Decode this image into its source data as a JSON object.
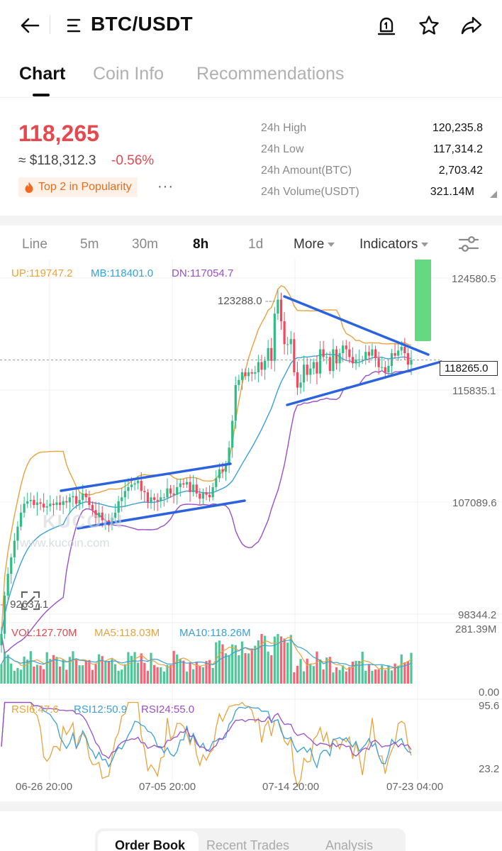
{
  "header": {
    "back_icon": "arrow-left-icon",
    "menu_icon": "list-menu-icon",
    "pair": "BTC/USDT",
    "alert_icon": "price-alert-icon",
    "favorite_icon": "star-icon",
    "share_icon": "share-icon"
  },
  "tabs": [
    {
      "label": "Chart",
      "active": true
    },
    {
      "label": "Coin Info",
      "active": false
    },
    {
      "label": "Recommendations",
      "active": false
    }
  ],
  "ticker": {
    "last_price": "118,265",
    "usd_value": "≈ $118,312.3",
    "change": "-0.56%",
    "badge": "Top 2 in Popularity",
    "badge_icon": "flame-icon",
    "more_label": "···"
  },
  "stats": [
    {
      "label": "24h High",
      "value": "120,235.8"
    },
    {
      "label": "24h Low",
      "value": "117,314.2"
    },
    {
      "label": "24h Amount(BTC)",
      "value": "2,703.42"
    },
    {
      "label": "24h Volume(USDT)",
      "value": "321.14M"
    }
  ],
  "timeframes": {
    "items": [
      "Line",
      "5m",
      "30m",
      "8h",
      "1d"
    ],
    "active": "8h",
    "more": "More",
    "indicators": "Indicators",
    "settings_icon": "sliders-icon"
  },
  "boll_legend": {
    "up": "UP:119747.2",
    "mb": "MB:118401.0",
    "dn": "DN:117054.7"
  },
  "vol_legend": {
    "vol": "VOL:127.70M",
    "ma5": "MA5:118.03M",
    "ma10": "MA10:118.26M"
  },
  "rsi_legend": {
    "rsi6": "RSI6:47.6",
    "rsi12": "RSI12:50.9",
    "rsi24": "RSI24:55.0"
  },
  "price_axis": [
    "124580.5",
    "115835.1",
    "107089.6",
    "98344.2"
  ],
  "current_price_tag": "118265.0",
  "max_marker": "123288.0",
  "min_marker": "92637.1",
  "vol_axis": [
    "281.39M",
    "0.00"
  ],
  "rsi_axis": [
    "95.6",
    "23.2"
  ],
  "dates": [
    "06-26 20:00",
    "07-05 20:00",
    "07-14 20:00",
    "07-23 04:00"
  ],
  "watermark": {
    "brand": "KUCOIN",
    "url": "www.kucoin.com"
  },
  "bottom_tabs": [
    {
      "label": "Order Book",
      "active": true
    },
    {
      "label": "Recent Trades",
      "active": false
    },
    {
      "label": "Analysis",
      "active": false
    }
  ],
  "colors": {
    "up": "#2ebd85",
    "down": "#f6465d",
    "boll_up": "#e8a33d",
    "boll_mb": "#3aa0d8",
    "boll_dn": "#9b4fc7",
    "trendline": "#2a62e0",
    "accent_red": "#e5484d"
  },
  "chart_data": {
    "type": "candlestick",
    "pair": "BTC/USDT",
    "interval": "8h",
    "price_range": [
      92637.1,
      123288.0
    ],
    "max_price": 123288.0,
    "min_price": 92637.1,
    "last_price": 118265.0,
    "x_ticks": [
      "06-26 20:00",
      "07-05 20:00",
      "07-14 20:00",
      "07-23 04:00"
    ],
    "y_ticks": [
      124580.5,
      115835.1,
      107089.6,
      98344.2
    ],
    "close_series": [
      96800,
      99800,
      101500,
      102800,
      104100,
      105200,
      106300,
      107000,
      107200,
      107300,
      106900,
      107100,
      107000,
      106700,
      106800,
      107000,
      106900,
      107100,
      106900,
      107200,
      107100,
      107500,
      107600,
      107000,
      107300,
      107800,
      107500,
      106900,
      106500,
      105900,
      106300,
      105700,
      105700,
      105300,
      105900,
      106300,
      107200,
      107500,
      108000,
      108300,
      108500,
      108600,
      108800,
      108000,
      107900,
      107100,
      107500,
      107300,
      107200,
      107500,
      107500,
      108200,
      107800,
      107700,
      108300,
      108600,
      108500,
      108700,
      107900,
      108500,
      107800,
      107400,
      107900,
      107700,
      107500,
      108300,
      109000,
      109700,
      109500,
      110100,
      111400,
      113500,
      116300,
      116700,
      117300,
      117000,
      117300,
      117200,
      117300,
      118100,
      117500,
      118200,
      119200,
      118200,
      121900,
      123000,
      121300,
      119500,
      119500,
      119900,
      117300,
      116100,
      116500,
      117900,
      117100,
      117600,
      118100,
      117200,
      119100,
      118500,
      118500,
      117400,
      119100,
      118000,
      118800,
      119400,
      119100,
      118500,
      118000,
      118300,
      118300,
      118300,
      118900,
      118600,
      119100,
      118400,
      117700,
      117700,
      117300,
      117800,
      118800,
      118600,
      119000,
      119300,
      118800,
      117900,
      118265
    ],
    "boll_latest": {
      "up": 119747.2,
      "mb": 118401.0,
      "dn": 117054.7
    },
    "volume_latest": {
      "vol": "127.70M",
      "ma5": "118.03M",
      "ma10": "118.26M"
    },
    "volume_range": [
      "0.00",
      "281.39M"
    ],
    "rsi_latest": {
      "rsi6": 47.6,
      "rsi12": 50.9,
      "rsi24": 55.0
    },
    "rsi_range": [
      23.2,
      95.6
    ]
  }
}
